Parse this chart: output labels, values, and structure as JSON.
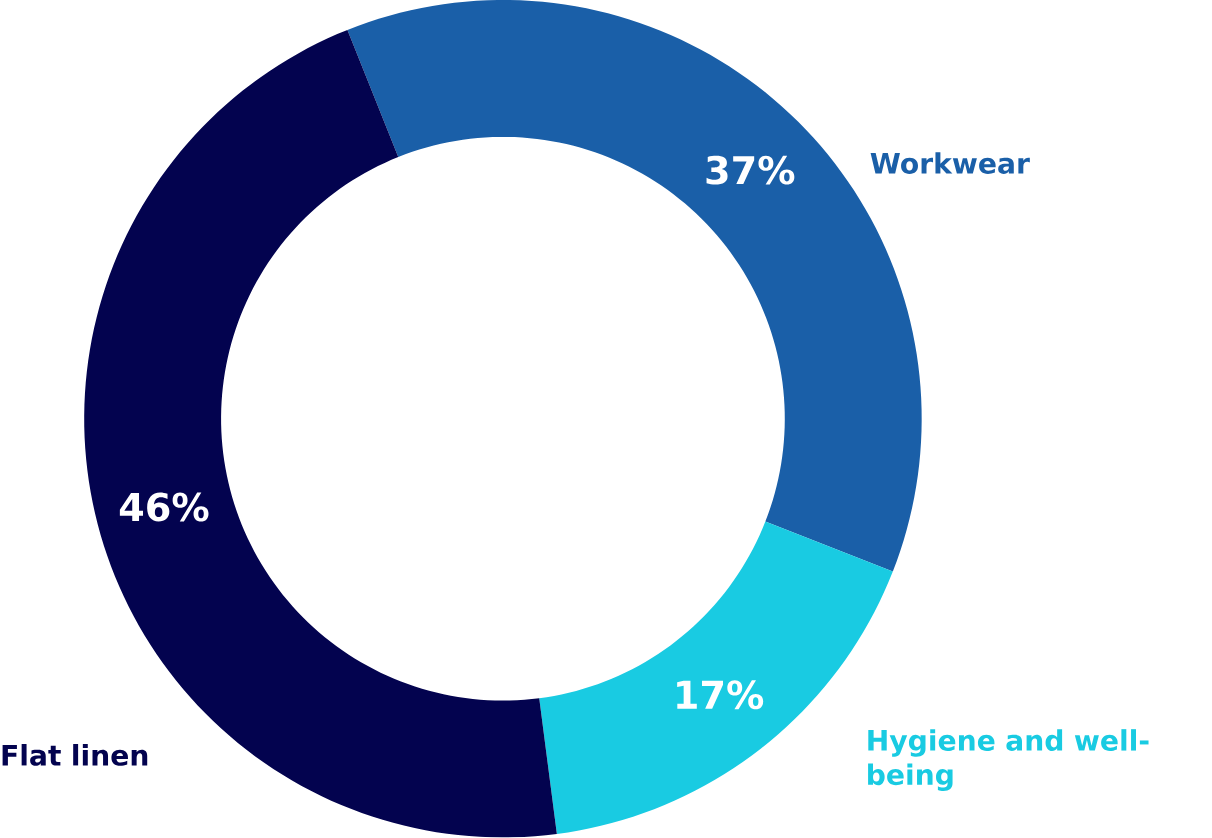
{
  "chart_data": {
    "type": "donut",
    "categories": [
      "Workwear",
      "Hygiene and well-being",
      "Flat linen"
    ],
    "values": [
      37,
      17,
      46
    ],
    "colors": [
      "#1a5fa8",
      "#19cbe2",
      "#03034f"
    ],
    "value_labels": [
      "37%",
      "17%",
      "46%"
    ]
  }
}
